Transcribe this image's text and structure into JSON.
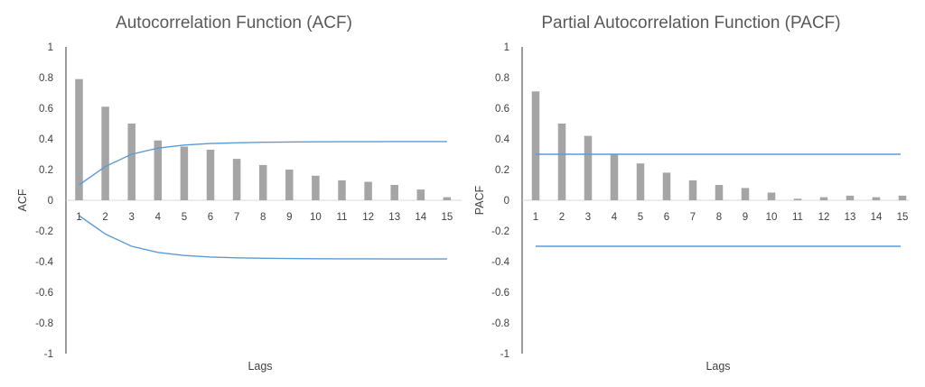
{
  "chart_data": [
    {
      "type": "bar",
      "title": "Autocorrelation Function (ACF)",
      "xlabel": "Lags",
      "ylabel": "ACF",
      "ylim": [
        -1,
        1
      ],
      "yticks": [
        "1",
        "0.8",
        "0.6",
        "0.4",
        "0.2",
        "0",
        "-0.2",
        "-0.4",
        "-0.6",
        "-0.8",
        "-1"
      ],
      "categories": [
        "1",
        "2",
        "3",
        "4",
        "5",
        "6",
        "7",
        "8",
        "9",
        "10",
        "11",
        "12",
        "13",
        "14",
        "15"
      ],
      "values": [
        0.79,
        0.61,
        0.5,
        0.39,
        0.35,
        0.33,
        0.27,
        0.23,
        0.2,
        0.16,
        0.13,
        0.12,
        0.1,
        0.07,
        0.02
      ],
      "upper_bound": [
        0.1,
        0.22,
        0.3,
        0.34,
        0.36,
        0.37,
        0.375,
        0.378,
        0.38,
        0.381,
        0.382,
        0.382,
        0.383,
        0.383,
        0.383
      ],
      "lower_bound": [
        -0.1,
        -0.22,
        -0.3,
        -0.34,
        -0.36,
        -0.37,
        -0.375,
        -0.378,
        -0.38,
        -0.381,
        -0.382,
        -0.382,
        -0.383,
        -0.383,
        -0.383
      ],
      "bar_color": "#a5a5a5",
      "bound_color": "#5b9bd5",
      "grid": false
    },
    {
      "type": "bar",
      "title": "Partial Autocorrelation Function (PACF)",
      "xlabel": "Lags",
      "ylabel": "PACF",
      "ylim": [
        -1,
        1
      ],
      "yticks": [
        "1",
        "0.8",
        "0.6",
        "0.4",
        "0.2",
        "0",
        "-0.2",
        "-0.4",
        "-0.6",
        "-0.8",
        "-1"
      ],
      "categories": [
        "1",
        "2",
        "3",
        "4",
        "5",
        "6",
        "7",
        "8",
        "9",
        "10",
        "11",
        "12",
        "13",
        "14",
        "15"
      ],
      "values": [
        0.71,
        0.5,
        0.42,
        0.3,
        0.24,
        0.18,
        0.13,
        0.1,
        0.08,
        0.05,
        0.01,
        0.02,
        0.03,
        0.02,
        0.03
      ],
      "upper_bound": [
        0.3,
        0.3,
        0.3,
        0.3,
        0.3,
        0.3,
        0.3,
        0.3,
        0.3,
        0.3,
        0.3,
        0.3,
        0.3,
        0.3,
        0.3
      ],
      "lower_bound": [
        -0.3,
        -0.3,
        -0.3,
        -0.3,
        -0.3,
        -0.3,
        -0.3,
        -0.3,
        -0.3,
        -0.3,
        -0.3,
        -0.3,
        -0.3,
        -0.3,
        -0.3
      ],
      "bar_color": "#a5a5a5",
      "bound_color": "#5b9bd5",
      "grid": false
    }
  ]
}
